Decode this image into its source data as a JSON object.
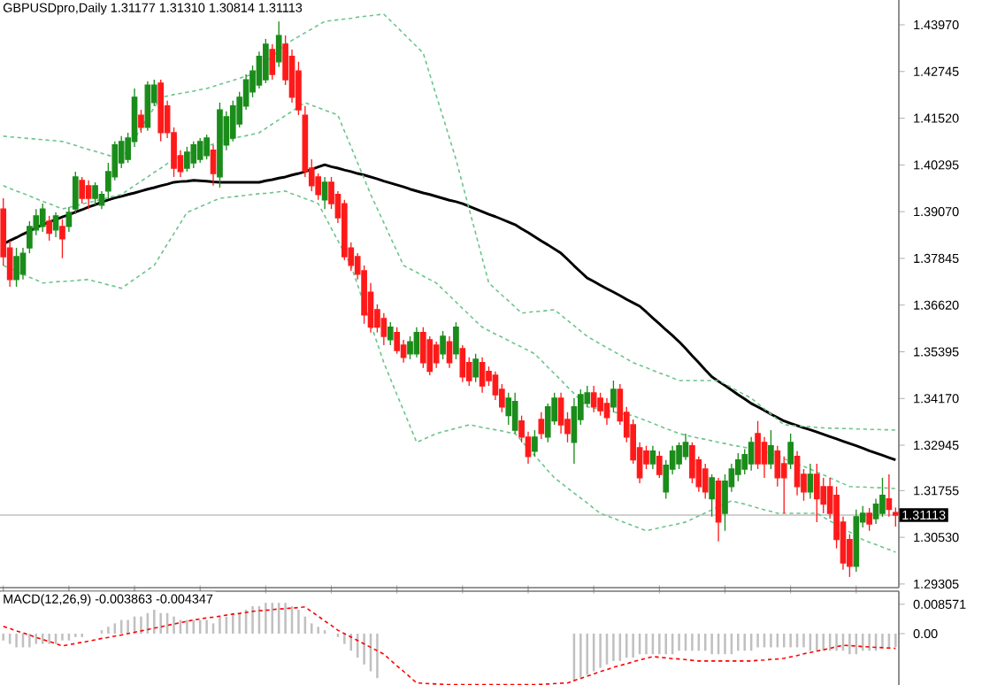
{
  "chart_data": [
    {
      "type": "candlestick",
      "title": "GBPUSDpro,Daily  1.31177 1.31310 1.30814 1.31113",
      "categories": [
        null,
        null,
        null,
        null,
        null,
        null,
        null,
        null,
        null,
        null,
        null,
        null,
        null,
        null,
        null,
        null,
        null,
        null,
        null,
        null,
        null,
        null,
        null,
        null,
        null,
        null,
        null,
        null,
        null,
        null,
        null,
        null,
        null,
        null,
        null,
        null,
        null,
        null,
        null,
        null,
        null,
        null,
        null,
        null,
        null,
        null,
        null,
        null,
        null,
        null,
        null,
        null,
        null,
        null,
        null,
        null,
        null,
        null,
        null,
        null,
        null,
        null,
        null,
        null,
        null,
        null,
        null,
        null,
        null,
        null,
        null,
        null,
        null,
        null,
        null,
        null,
        null,
        null,
        null,
        null,
        null,
        null,
        null,
        null,
        null,
        null,
        null,
        null,
        null,
        null,
        null,
        null,
        null,
        null,
        null,
        null,
        null,
        null,
        null,
        null,
        null,
        null,
        null,
        null,
        null,
        null,
        null,
        null,
        null,
        null,
        null,
        null,
        null,
        null,
        null,
        null,
        null,
        null,
        null,
        null,
        null,
        null,
        null,
        null,
        null,
        null,
        null,
        null,
        null,
        null,
        null,
        null,
        null,
        null,
        null,
        null,
        null
      ],
      "ohlc": [
        [
          1.3914,
          1.3942,
          1.3766,
          1.3789
        ],
        [
          1.3812,
          1.3831,
          1.371,
          1.3729
        ],
        [
          1.3729,
          1.3812,
          1.371,
          1.3789
        ],
        [
          1.3743,
          1.3812,
          1.3729,
          1.3798
        ],
        [
          1.3812,
          1.3882,
          1.3798,
          1.3868
        ],
        [
          1.3859,
          1.3914,
          1.3845,
          1.3896
        ],
        [
          1.3868,
          1.3928,
          1.3854,
          1.3914
        ],
        [
          1.3882,
          1.3896,
          1.3831,
          1.385
        ],
        [
          1.3859,
          1.3905,
          1.384,
          1.3896
        ],
        [
          1.3868,
          1.3887,
          1.3785,
          1.3836
        ],
        [
          1.3868,
          1.3919,
          1.3854,
          1.3905
        ],
        [
          1.3914,
          1.4012,
          1.3901,
          1.3998
        ],
        [
          1.3989,
          1.3998,
          1.3928,
          1.3942
        ],
        [
          1.3975,
          1.3989,
          1.3914,
          1.3942
        ],
        [
          1.3942,
          1.3984,
          1.3924,
          1.3975
        ],
        [
          1.3924,
          1.3961,
          1.3914,
          1.3952
        ],
        [
          1.3961,
          1.4035,
          1.3942,
          1.4012
        ],
        [
          1.3998,
          1.4091,
          1.3989,
          1.4082
        ],
        [
          1.4035,
          1.4105,
          1.4021,
          1.4091
        ],
        [
          1.4044,
          1.4114,
          1.4035,
          1.41
        ],
        [
          1.4091,
          1.423,
          1.4077,
          1.4207
        ],
        [
          1.416,
          1.4174,
          1.4114,
          1.4128
        ],
        [
          1.4128,
          1.4249,
          1.4119,
          1.4239
        ],
        [
          1.4193,
          1.4253,
          1.4184,
          1.4239
        ],
        [
          1.4244,
          1.4253,
          1.4091,
          1.4114
        ],
        [
          1.4184,
          1.4198,
          1.41,
          1.4114
        ],
        [
          1.4114,
          1.4128,
          1.3998,
          1.4021
        ],
        [
          1.4054,
          1.4068,
          1.3998,
          1.4012
        ],
        [
          1.4021,
          1.4077,
          1.4012,
          1.4063
        ],
        [
          1.4035,
          1.4091,
          1.4021,
          1.4082
        ],
        [
          1.4044,
          1.41,
          1.4035,
          1.4091
        ],
        [
          1.4054,
          1.4109,
          1.4044,
          1.41
        ],
        [
          1.4068,
          1.4082,
          1.3975,
          1.4007
        ],
        [
          1.3998,
          1.4193,
          1.397,
          1.4174
        ],
        [
          1.4082,
          1.417,
          1.4068,
          1.4156
        ],
        [
          1.41,
          1.4198,
          1.4091,
          1.4184
        ],
        [
          1.4137,
          1.4221,
          1.4128,
          1.4207
        ],
        [
          1.4184,
          1.4267,
          1.4174,
          1.4253
        ],
        [
          1.4221,
          1.429,
          1.4207,
          1.4276
        ],
        [
          1.4239,
          1.4327,
          1.423,
          1.4314
        ],
        [
          1.4253,
          1.436,
          1.4244,
          1.4346
        ],
        [
          1.4332,
          1.4346,
          1.4253,
          1.4267
        ],
        [
          1.43,
          1.4406,
          1.4286,
          1.4369
        ],
        [
          1.4346,
          1.4369,
          1.4239,
          1.4253
        ],
        [
          1.4314,
          1.4332,
          1.4193,
          1.4207
        ],
        [
          1.4276,
          1.43,
          1.416,
          1.4174
        ],
        [
          1.416,
          1.4184,
          1.3998,
          1.4012
        ],
        [
          1.4021,
          1.4044,
          1.3961,
          1.3975
        ],
        [
          1.3998,
          1.4007,
          1.3938,
          1.3952
        ],
        [
          1.3938,
          1.3998,
          1.3914,
          1.3984
        ],
        [
          1.3984,
          1.3998,
          1.3914,
          1.3928
        ],
        [
          1.3952,
          1.3961,
          1.3877,
          1.3891
        ],
        [
          1.3928,
          1.3938,
          1.378,
          1.3789
        ],
        [
          1.3812,
          1.3826,
          1.3752,
          1.3766
        ],
        [
          1.3789,
          1.3798,
          1.3729,
          1.3743
        ],
        [
          1.3752,
          1.3766,
          1.3613,
          1.3636
        ],
        [
          1.3696,
          1.372,
          1.359,
          1.3604
        ],
        [
          1.365,
          1.3664,
          1.359,
          1.3604
        ],
        [
          1.3627,
          1.3641,
          1.3557,
          1.358
        ],
        [
          1.3571,
          1.3617,
          1.3557,
          1.3604
        ],
        [
          1.359,
          1.3604,
          1.3534,
          1.3543
        ],
        [
          1.3557,
          1.3571,
          1.3511,
          1.3525
        ],
        [
          1.3534,
          1.358,
          1.352,
          1.3566
        ],
        [
          1.3534,
          1.3604,
          1.3525,
          1.359
        ],
        [
          1.359,
          1.3604,
          1.3497,
          1.3511
        ],
        [
          1.3571,
          1.358,
          1.3478,
          1.3488
        ],
        [
          1.3557,
          1.3566,
          1.3497,
          1.3511
        ],
        [
          1.3534,
          1.3594,
          1.352,
          1.358
        ],
        [
          1.3566,
          1.358,
          1.3497,
          1.3511
        ],
        [
          1.3534,
          1.3617,
          1.352,
          1.3604
        ],
        [
          1.3548,
          1.3557,
          1.346,
          1.3474
        ],
        [
          1.3511,
          1.3525,
          1.345,
          1.3464
        ],
        [
          1.3474,
          1.3534,
          1.346,
          1.352
        ],
        [
          1.3511,
          1.3525,
          1.3432,
          1.345
        ],
        [
          1.3488,
          1.3501,
          1.345,
          1.3464
        ],
        [
          1.3478,
          1.3488,
          1.3413,
          1.3427
        ],
        [
          1.3441,
          1.3455,
          1.3381,
          1.3395
        ],
        [
          1.3372,
          1.3432,
          1.3348,
          1.3418
        ],
        [
          1.3334,
          1.3432,
          1.3325,
          1.3409
        ],
        [
          1.3358,
          1.3372,
          1.3302,
          1.3316
        ],
        [
          1.3316,
          1.333,
          1.3246,
          1.3265
        ],
        [
          1.3279,
          1.3334,
          1.3265,
          1.3316
        ],
        [
          1.3362,
          1.3381,
          1.3311,
          1.3325
        ],
        [
          1.3316,
          1.3404,
          1.3302,
          1.3395
        ],
        [
          1.3358,
          1.3432,
          1.3348,
          1.3418
        ],
        [
          1.3418,
          1.3432,
          1.3325,
          1.3348
        ],
        [
          1.3362,
          1.3381,
          1.3302,
          1.3325
        ],
        [
          1.3302,
          1.3418,
          1.3246,
          1.3395
        ],
        [
          1.3362,
          1.3441,
          1.3348,
          1.3427
        ],
        [
          1.3404,
          1.345,
          1.3395,
          1.3432
        ],
        [
          1.3432,
          1.345,
          1.3381,
          1.3395
        ],
        [
          1.3418,
          1.3432,
          1.3372,
          1.3385
        ],
        [
          1.3404,
          1.3418,
          1.3348,
          1.3367
        ],
        [
          1.3395,
          1.3464,
          1.3381,
          1.3441
        ],
        [
          1.3441,
          1.3455,
          1.3348,
          1.3358
        ],
        [
          1.3381,
          1.3395,
          1.3302,
          1.3316
        ],
        [
          1.3348,
          1.3362,
          1.3246,
          1.3256
        ],
        [
          1.3288,
          1.3302,
          1.3195,
          1.3209
        ],
        [
          1.3279,
          1.3293,
          1.3232,
          1.3246
        ],
        [
          1.3246,
          1.3293,
          1.3232,
          1.3279
        ],
        [
          1.3265,
          1.3279,
          1.3209,
          1.3218
        ],
        [
          1.3172,
          1.3256,
          1.3154,
          1.3242
        ],
        [
          1.3232,
          1.3293,
          1.3218,
          1.3279
        ],
        [
          1.3246,
          1.3302,
          1.3232,
          1.3293
        ],
        [
          1.3265,
          1.3325,
          1.3256,
          1.3302
        ],
        [
          1.3293,
          1.3302,
          1.3195,
          1.3209
        ],
        [
          1.3256,
          1.3265,
          1.3172,
          1.3186
        ],
        [
          1.3232,
          1.3246,
          1.3154,
          1.3172
        ],
        [
          1.3154,
          1.3218,
          1.3107,
          1.3209
        ],
        [
          1.32,
          1.3209,
          1.3042,
          1.3093
        ],
        [
          1.3116,
          1.3218,
          1.307,
          1.32
        ],
        [
          1.3186,
          1.3246,
          1.3172,
          1.3232
        ],
        [
          1.3218,
          1.3274,
          1.32,
          1.3256
        ],
        [
          1.3232,
          1.3284,
          1.3218,
          1.327
        ],
        [
          1.3246,
          1.3316,
          1.3228,
          1.3302
        ],
        [
          1.3325,
          1.3358,
          1.3232,
          1.3246
        ],
        [
          1.3302,
          1.3316,
          1.3209,
          1.3246
        ],
        [
          1.3246,
          1.3334,
          1.3232,
          1.3293
        ],
        [
          1.3279,
          1.3293,
          1.3186,
          1.3209
        ],
        [
          1.3246,
          1.3265,
          1.3116,
          1.3209
        ],
        [
          1.3246,
          1.3325,
          1.3232,
          1.3302
        ],
        [
          1.3265,
          1.3279,
          1.3163,
          1.3186
        ],
        [
          1.3218,
          1.3232,
          1.3149,
          1.3172
        ],
        [
          1.3172,
          1.3246,
          1.3154,
          1.3218
        ],
        [
          1.3218,
          1.3246,
          1.3093,
          1.3154
        ],
        [
          1.3186,
          1.3209,
          1.3116,
          1.314
        ],
        [
          1.3186,
          1.3209,
          1.3102,
          1.3116
        ],
        [
          1.3163,
          1.3186,
          1.3024,
          1.3047
        ],
        [
          1.3093,
          1.3107,
          1.2968,
          1.2986
        ],
        [
          1.3047,
          1.3061,
          1.2949,
          1.2977
        ],
        [
          1.2977,
          1.3126,
          1.2963,
          1.3107
        ],
        [
          1.3093,
          1.3135,
          1.3079,
          1.3116
        ],
        [
          1.3116,
          1.313,
          1.307,
          1.3088
        ],
        [
          1.3102,
          1.3154,
          1.3088,
          1.314
        ],
        [
          1.3116,
          1.3209,
          1.3107,
          1.3163
        ],
        [
          1.3154,
          1.3218,
          1.3107,
          1.3126
        ],
        [
          1.31177,
          1.3131,
          1.30814,
          1.31113
        ]
      ],
      "series": [
        {
          "type": "line",
          "color": "#000000",
          "values": [
            1.3822,
            1.3831,
            1.3839,
            1.3848,
            1.3856,
            1.3865,
            1.3873,
            1.388,
            1.3886,
            1.3893,
            1.3899,
            1.3906,
            1.3912,
            1.3919,
            1.3925,
            1.3932,
            1.3938,
            1.3943,
            1.3947,
            1.3952,
            1.3956,
            1.3961,
            1.3966,
            1.397,
            1.3975,
            1.3979,
            1.3984,
            1.3986,
            1.3987,
            1.3989,
            1.3988,
            1.3987,
            1.3985,
            1.3984,
            1.3984,
            1.3984,
            1.3984,
            1.3984,
            1.3984,
            1.3984,
            1.3988,
            1.3991,
            1.3995,
            1.3998,
            1.4003,
            1.4007,
            1.4012,
            1.4018,
            1.4024,
            1.403,
            1.4025,
            1.4021,
            1.4016,
            1.4012,
            1.4007,
            1.4003,
            1.3998,
            1.3993,
            1.3987,
            1.3982,
            1.3977,
            1.3972,
            1.3966,
            1.3961,
            1.3956,
            1.3952,
            1.3947,
            1.3942,
            1.3937,
            1.3933,
            1.3928,
            1.3921,
            1.3914,
            1.3907,
            1.39,
            1.3894,
            1.3887,
            1.388,
            1.3873,
            1.3862,
            1.3852,
            1.3841,
            1.383,
            1.382,
            1.3809,
            1.3798,
            1.3782,
            1.3765,
            1.3749,
            1.3733,
            1.3724,
            1.3714,
            1.3705,
            1.3696,
            1.3687,
            1.3677,
            1.3668,
            1.3659,
            1.3644,
            1.3628,
            1.3613,
            1.3597,
            1.3582,
            1.3566,
            1.3548,
            1.3529,
            1.3511,
            1.3492,
            1.3474,
            1.3462,
            1.3451,
            1.3439,
            1.3427,
            1.3416,
            1.3404,
            1.3395,
            1.3386,
            1.3376,
            1.3367,
            1.3358,
            1.3352,
            1.3346,
            1.334,
            1.3335,
            1.3329,
            1.3323,
            1.3317,
            1.3311,
            1.3305,
            1.3299,
            1.3293,
            1.3287,
            1.328,
            1.3274,
            1.3268,
            1.3262,
            1.3256
          ]
        },
        {
          "type": "line",
          "color": "#6cc48c",
          "line_style": "dashed",
          "values": [
            1.4105,
            1.4103,
            1.4102,
            1.41,
            1.4099,
            1.4097,
            1.4096,
            1.4094,
            1.4093,
            1.4091,
            1.4086,
            1.4081,
            1.4075,
            1.407,
            1.4065,
            1.406,
            1.4055,
            1.4049,
            1.4044,
            1.4071,
            1.4098,
            1.4126,
            1.4153,
            1.418,
            1.4207,
            1.421,
            1.4214,
            1.4217,
            1.422,
            1.4223,
            1.4227,
            1.423,
            1.4235,
            1.4241,
            1.4246,
            1.4251,
            1.4257,
            1.4262,
            1.4267,
            1.4283,
            1.4299,
            1.4314,
            1.433,
            1.4346,
            1.4356,
            1.4366,
            1.4376,
            1.4386,
            1.4396,
            1.4406,
            1.4408,
            1.441,
            1.4412,
            1.4414,
            1.4417,
            1.4419,
            1.4421,
            1.4423,
            1.4425,
            1.4408,
            1.4391,
            1.4374,
            1.4357,
            1.434,
            1.4323,
            1.4267,
            1.4211,
            1.4156,
            1.41,
            1.4044,
            1.3979,
            1.3914,
            1.385,
            1.3785,
            1.372,
            1.3704,
            1.3688,
            1.3673,
            1.3657,
            1.3641,
            1.3643,
            1.3645,
            1.3646,
            1.3648,
            1.365,
            1.3636,
            1.3622,
            1.3608,
            1.3594,
            1.358,
            1.357,
            1.356,
            1.355,
            1.3541,
            1.3531,
            1.3521,
            1.3511,
            1.3504,
            1.3498,
            1.3491,
            1.3484,
            1.3478,
            1.3471,
            1.3464,
            1.3464,
            1.3464,
            1.3464,
            1.3464,
            1.3464,
            1.3464,
            1.3455,
            1.3446,
            1.3436,
            1.3427,
            1.3418,
            1.3404,
            1.339,
            1.3376,
            1.3362,
            1.3348,
            1.3347,
            1.3345,
            1.3344,
            1.3343,
            1.3341,
            1.334,
            1.3339,
            1.3339,
            1.3338,
            1.3338,
            1.3337,
            1.3337,
            1.3336,
            1.3336,
            1.3335,
            1.3335,
            1.3334
          ]
        },
        {
          "type": "line",
          "color": "#6cc48c",
          "line_style": "dashed",
          "values": [
            1.3975,
            1.3968,
            1.3961,
            1.3955,
            1.3948,
            1.3941,
            1.3934,
            1.3928,
            1.3921,
            1.3914,
            1.3918,
            1.3922,
            1.3927,
            1.3931,
            1.3935,
            1.3939,
            1.3944,
            1.3948,
            1.3952,
            1.3964,
            1.3975,
            1.3987,
            1.3998,
            1.401,
            1.4021,
            1.4033,
            1.4044,
            1.4051,
            1.4057,
            1.4064,
            1.4071,
            1.4078,
            1.4084,
            1.4091,
            1.4095,
            1.4099,
            1.4103,
            1.4106,
            1.411,
            1.4114,
            1.4125,
            1.4137,
            1.4148,
            1.4159,
            1.417,
            1.4182,
            1.4193,
            1.4186,
            1.418,
            1.4173,
            1.4167,
            1.416,
            1.4118,
            1.4077,
            1.4035,
            1.3994,
            1.3952,
            1.3915,
            1.3878,
            1.384,
            1.3803,
            1.3766,
            1.3757,
            1.3748,
            1.3738,
            1.3729,
            1.372,
            1.3703,
            1.3687,
            1.367,
            1.3653,
            1.3637,
            1.362,
            1.3604,
            1.3595,
            1.3586,
            1.3578,
            1.3569,
            1.356,
            1.3552,
            1.3543,
            1.3534,
            1.3517,
            1.3499,
            1.3482,
            1.3465,
            1.3447,
            1.343,
            1.3412,
            1.3395,
            1.3392,
            1.3388,
            1.3385,
            1.3382,
            1.3378,
            1.3375,
            1.3372,
            1.3365,
            1.3359,
            1.3352,
            1.3345,
            1.3338,
            1.3332,
            1.3325,
            1.3321,
            1.3317,
            1.3313,
            1.331,
            1.3306,
            1.3302,
            1.3299,
            1.3295,
            1.3292,
            1.3289,
            1.3286,
            1.3282,
            1.3279,
            1.3272,
            1.3266,
            1.3259,
            1.3252,
            1.3245,
            1.3239,
            1.3232,
            1.3224,
            1.3217,
            1.3209,
            1.3201,
            1.3194,
            1.3186,
            1.3185,
            1.3185,
            1.3184,
            1.3183,
            1.3183,
            1.3182,
            1.3181
          ]
        },
        {
          "type": "line",
          "color": "#6cc48c",
          "line_style": "dashed",
          "values": [
            1.3766,
            1.3758,
            1.3751,
            1.3743,
            1.3735,
            1.3728,
            1.372,
            1.3721,
            1.3723,
            1.3724,
            1.3725,
            1.3726,
            1.3728,
            1.3729,
            1.3724,
            1.372,
            1.3715,
            1.3711,
            1.3706,
            1.3718,
            1.373,
            1.3742,
            1.3754,
            1.3766,
            1.3794,
            1.3822,
            1.3849,
            1.3877,
            1.3905,
            1.3912,
            1.392,
            1.3927,
            1.3935,
            1.3942,
            1.3944,
            1.3946,
            1.3948,
            1.395,
            1.3952,
            1.3954,
            1.3955,
            1.3957,
            1.3959,
            1.3961,
            1.3954,
            1.3948,
            1.3941,
            1.3935,
            1.3928,
            1.3896,
            1.3863,
            1.3831,
            1.3798,
            1.3766,
            1.3715,
            null,
            1.3613,
            1.3562,
            1.3511,
            1.3469,
            1.3427,
            1.3386,
            1.3344,
            1.3302,
            1.331,
            1.3317,
            1.3325,
            1.333,
            1.3334,
            1.3339,
            1.3343,
            1.3348,
            1.3345,
            1.3341,
            1.3338,
            1.3335,
            1.3332,
            1.3328,
            1.3325,
            1.3306,
            1.3286,
            1.3267,
            1.3248,
            1.3228,
            1.3209,
            1.3196,
            1.3182,
            1.3169,
            1.3156,
            1.3143,
            1.3129,
            1.3116,
            1.3109,
            1.3103,
            1.3096,
            1.309,
            1.3083,
            1.3077,
            1.307,
            1.3074,
            1.3078,
            1.3082,
            1.3085,
            1.3089,
            1.3093,
            1.3101,
            1.3109,
            1.3117,
            1.3125,
            1.3133,
            1.3141,
            1.3149,
            1.3144,
            1.314,
            1.3135,
            1.313,
            1.3125,
            1.3121,
            1.3116,
            1.3116,
            1.3116,
            1.3116,
            1.3116,
            1.3116,
            1.3116,
            1.3106,
            1.3096,
            1.3086,
            1.3076,
            1.3067,
            1.3057,
            1.3047,
            1.304,
            1.3034,
            1.3027,
            1.3021,
            1.3014
          ]
        }
      ],
      "ylim": [
        1.2921,
        1.4462
      ],
      "yticks": [
        {
          "value": 1.4397,
          "label": "1.43970"
        },
        {
          "value": 1.42745,
          "label": "1.42745"
        },
        {
          "value": 1.4152,
          "label": "1.41520"
        },
        {
          "value": 1.40295,
          "label": "1.40295"
        },
        {
          "value": 1.3907,
          "label": "1.39070"
        },
        {
          "value": 1.37845,
          "label": "1.37845"
        },
        {
          "value": 1.3662,
          "label": "1.36620"
        },
        {
          "value": 1.35395,
          "label": "1.35395"
        },
        {
          "value": 1.3417,
          "label": "1.34170"
        },
        {
          "value": 1.32945,
          "label": "1.32945"
        },
        {
          "value": 1.31755,
          "label": "1.31755"
        },
        {
          "value": 1.3053,
          "label": "1.30530"
        },
        {
          "value": 1.29305,
          "label": "1.29305"
        }
      ],
      "ref_lines": [
        {
          "axis": "y",
          "value": 1.31113,
          "label": "1.31113",
          "color": "#c0c0c0"
        }
      ],
      "tick_labels": "y"
    },
    {
      "type": "bar",
      "title": "MACD(12,26,9) -0.003863 -0.004347",
      "categories": [
        null,
        null,
        null,
        null,
        null,
        null,
        null,
        null,
        null,
        null,
        null,
        null,
        null,
        null,
        null,
        null,
        null,
        null,
        null,
        null,
        null,
        null,
        null,
        null,
        null,
        null,
        null,
        null,
        null,
        null,
        null,
        null,
        null,
        null,
        null,
        null,
        null,
        null,
        null,
        null,
        null,
        null,
        null,
        null,
        null,
        null,
        null,
        null,
        null,
        null,
        null,
        null,
        null,
        null,
        null,
        null,
        null,
        null,
        null,
        null,
        null,
        null,
        null,
        null,
        null,
        null,
        null,
        null,
        null,
        null,
        null,
        null,
        null,
        null,
        null,
        null,
        null,
        null,
        null,
        null,
        null,
        null,
        null,
        null,
        null,
        null,
        null,
        null,
        null,
        null,
        null,
        null,
        null,
        null,
        null,
        null,
        null,
        null,
        null,
        null,
        null,
        null,
        null,
        null,
        null,
        null,
        null,
        null,
        null,
        null,
        null,
        null,
        null,
        null,
        null,
        null,
        null,
        null,
        null,
        null,
        null,
        null,
        null,
        null,
        null,
        null,
        null,
        null,
        null,
        null,
        null,
        null,
        null,
        null,
        null,
        null,
        null
      ],
      "series": [
        {
          "type": "bar",
          "color": "#c0c0c0",
          "values": [
            -0.002,
            -0.003,
            -0.004,
            -0.004,
            -0.004,
            -0.003,
            -0.003,
            -0.003,
            -0.003,
            -0.002,
            -0.002,
            -0.001,
            -0.001,
            0.0,
            0.0,
            0.001,
            0.002,
            0.003,
            0.004,
            0.004,
            0.005,
            0.005,
            0.006,
            0.007,
            0.006,
            0.006,
            0.005,
            0.004,
            0.004,
            0.004,
            0.004,
            0.004,
            0.003,
            0.005,
            0.005,
            0.006,
            0.006,
            0.007,
            0.008,
            0.008,
            0.009,
            0.009,
            0.009,
            0.009,
            0.008,
            0.007,
            0.005,
            0.003,
            0.002,
            0.001,
            0.0,
            -0.001,
            -0.003,
            -0.005,
            -0.007,
            -0.009,
            -0.011,
            -0.013,
            null,
            null,
            null,
            null,
            null,
            null,
            null,
            null,
            null,
            null,
            null,
            null,
            null,
            null,
            null,
            null,
            null,
            null,
            null,
            null,
            null,
            null,
            null,
            null,
            null,
            null,
            null,
            null,
            null,
            -0.014,
            -0.013,
            -0.012,
            -0.011,
            -0.01,
            -0.009,
            -0.008,
            -0.008,
            -0.007,
            -0.007,
            -0.006,
            -0.006,
            -0.006,
            -0.006,
            -0.006,
            -0.006,
            -0.005,
            -0.005,
            -0.005,
            -0.005,
            -0.005,
            -0.006,
            -0.006,
            -0.006,
            -0.006,
            -0.005,
            -0.005,
            -0.005,
            -0.004,
            -0.004,
            -0.004,
            -0.004,
            -0.004,
            -0.004,
            -0.004,
            -0.004,
            -0.005,
            -0.005,
            -0.005,
            -0.005,
            -0.005,
            -0.005,
            -0.006,
            -0.006,
            -0.005,
            -0.005,
            -0.005,
            -0.004,
            -0.004,
            -0.0039
          ]
        },
        {
          "type": "line",
          "color": "#ff0000",
          "line_style": "dashed",
          "values": [
            0.0021,
            0.0015,
            0.0008,
            0.0002,
            -0.0004,
            -0.0011,
            -0.0017,
            -0.0023,
            -0.0029,
            -0.0036,
            -0.0032,
            -0.0029,
            -0.0025,
            -0.0022,
            -0.0018,
            -0.0014,
            -0.0011,
            -0.0007,
            -0.0004,
            0.0,
            0.0004,
            0.0008,
            0.0012,
            0.0016,
            0.002,
            0.0024,
            0.0028,
            0.0032,
            0.0036,
            0.004,
            0.0043,
            0.0046,
            0.0048,
            0.0051,
            0.0054,
            0.0057,
            0.0059,
            0.0062,
            0.0065,
            0.0067,
            0.0068,
            0.007,
            0.0072,
            0.0073,
            0.0075,
            0.0076,
            0.0078,
            0.0064,
            0.0051,
            0.0037,
            0.0024,
            0.001,
            0.0,
            -0.001,
            -0.002,
            -0.003,
            -0.004,
            -0.005,
            -0.006,
            -0.0077,
            -0.0094,
            -0.011,
            -0.0127,
            -0.0144,
            -0.0145,
            -0.0146,
            -0.0147,
            -0.0148,
            -0.0149,
            -0.0149,
            null,
            null,
            null,
            null,
            null,
            null,
            null,
            null,
            null,
            null,
            null,
            -0.0149,
            -0.0148,
            -0.0147,
            -0.0146,
            -0.0145,
            -0.0144,
            -0.0137,
            -0.0131,
            -0.0124,
            -0.0118,
            -0.0111,
            -0.0105,
            -0.0098,
            -0.0093,
            -0.0088,
            -0.0082,
            -0.0077,
            -0.0072,
            -0.0067,
            -0.0069,
            -0.0071,
            -0.0073,
            -0.0074,
            -0.0076,
            -0.0078,
            -0.008,
            -0.008,
            -0.008,
            -0.008,
            -0.008,
            -0.008,
            -0.008,
            -0.008,
            -0.008,
            -0.0078,
            -0.0077,
            -0.0075,
            -0.0074,
            -0.0072,
            -0.0068,
            -0.0064,
            -0.0059,
            -0.0055,
            -0.0051,
            -0.0047,
            -0.0043,
            -0.0038,
            -0.0034,
            -0.0035,
            -0.0036,
            -0.0038,
            -0.0039,
            -0.004,
            -0.0041,
            -0.0042,
            -0.0043
          ]
        }
      ],
      "ylim": [
        -0.015,
        0.0124
      ],
      "yticks": [
        {
          "value": 0.008571,
          "label": "0.008571"
        },
        {
          "value": 0,
          "label": "0.00"
        }
      ],
      "tick_labels": "y"
    }
  ]
}
